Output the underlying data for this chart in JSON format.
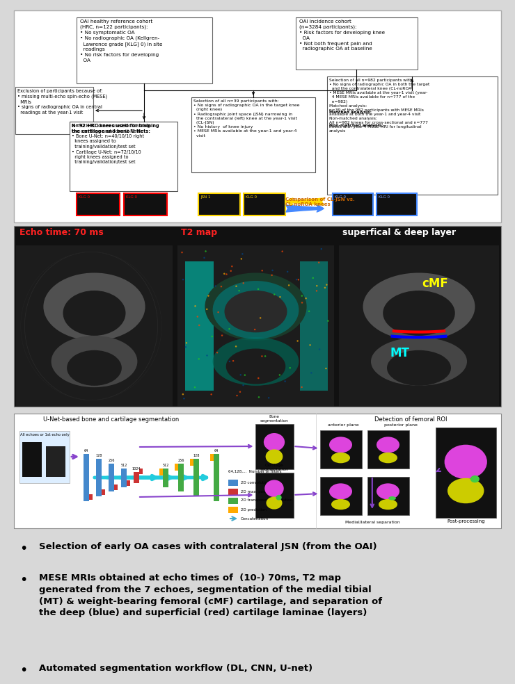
{
  "background_color": "#d8d8d8",
  "bullet_points": [
    "Selection of early OA cases with contralateral JSN (from the OAI)",
    "MESE MRIs obtained at echo times of  (10-) 70ms, T2 map\ngenerated from the 7 echoes, segmentation of the medial tibial\n(MT) & weight-bearing femoral (cMF) cartilage, and separation of\nthe deep (blue) and superficial (red) cartilage laminae (layers)",
    "Automated segmentation workflow (DL, CNN, U-net)"
  ],
  "panel2_labels": [
    "Echo time: 70 ms",
    "T2 map",
    "superfical & deep layer"
  ],
  "panel3_title": "U-Net-based bone and cartilage segmentation",
  "panel3_right_title": "Detection of femoral ROI",
  "unet_legend": [
    [
      "#4488cc",
      "2D convolution"
    ],
    [
      "#cc3333",
      "2D max. pooling"
    ],
    [
      "#44aa44",
      "2D transposed convolution"
    ],
    [
      "#ffaa00",
      "2D prediction"
    ],
    [
      "#44aacc",
      "Concatenation"
    ]
  ],
  "unet_filter_text": "64,128,...  Number of filters"
}
